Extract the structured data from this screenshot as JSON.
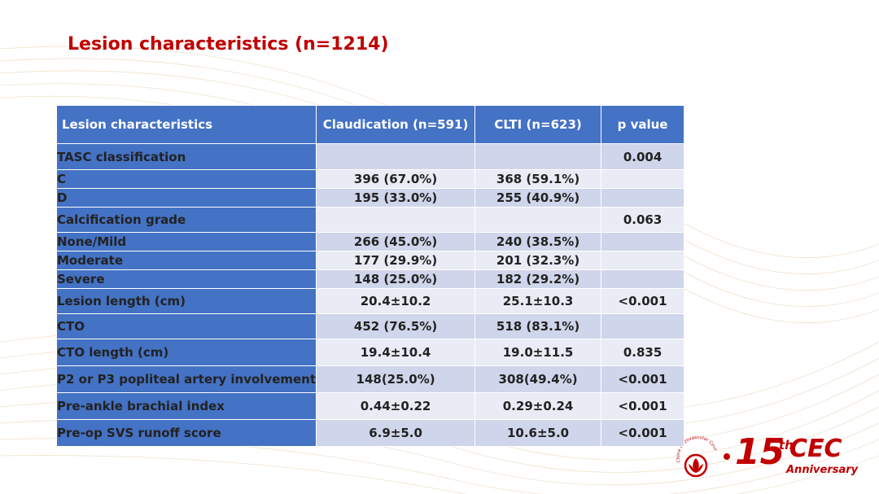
{
  "title": "Lesion characteristics (n=1214)",
  "colors": {
    "title": "#c00000",
    "header_bg": "#4472c4",
    "row_odd": "#cfd5ea",
    "row_even": "#e9ebf5",
    "significant": "#ff0000"
  },
  "table": {
    "headers": [
      "Lesion characteristics",
      "Claudication (n=591)",
      "CLTI (n=623)",
      "p value"
    ],
    "rows": [
      {
        "label": "TASC classification",
        "claudication": "",
        "clti": "",
        "p": "0.004"
      },
      {
        "label": "C",
        "claudication": "396 (67.0%)",
        "clti": "368 (59.1%)",
        "p": ""
      },
      {
        "label": "D",
        "claudication": "195 (33.0%)",
        "clti": "255 (40.9%)",
        "p": ""
      },
      {
        "label": "Calcification grade",
        "claudication": "",
        "clti": "",
        "p": "0.063"
      },
      {
        "label": "None/Mild",
        "claudication": "266 (45.0%)",
        "clti": "240 (38.5%)",
        "p": ""
      },
      {
        "label": "Moderate",
        "claudication": "177 (29.9%)",
        "clti": "201 (32.3%)",
        "p": ""
      },
      {
        "label": "Severe",
        "claudication": "148 (25.0%)",
        "clti": "182 (29.2%)",
        "p": ""
      },
      {
        "label": "Lesion length (cm)",
        "claudication": "20.4±10.2",
        "clti": "25.1±10.3",
        "p": "<0.001"
      },
      {
        "label": "CTO",
        "claudication": "452 (76.5%)",
        "clti": "518 (83.1%)",
        "p": ""
      },
      {
        "label": "CTO length (cm)",
        "claudication": "19.4±10.4",
        "clti": "19.0±11.5",
        "p": "0.835"
      },
      {
        "label": "P2 or P3 popliteal artery involvement",
        "claudication": "148(25.0%)",
        "clti": "308(49.4%)",
        "p": "<0.001"
      },
      {
        "label": "Pre-ankle brachial index",
        "claudication": "0.44±0.22",
        "clti": "0.29±0.24",
        "p": "<0.001"
      },
      {
        "label": "Pre-op SVS runoff score",
        "claudication": "6.9±5.0",
        "clti": "10.6±5.0",
        "p": "<0.001"
      }
    ]
  },
  "logo": {
    "number": "15",
    "superscript": "th",
    "name": "CEC",
    "subtitle": "Anniversary",
    "emblem_text": "China Endovascular Course",
    "icon": "lotus-emblem-icon"
  }
}
